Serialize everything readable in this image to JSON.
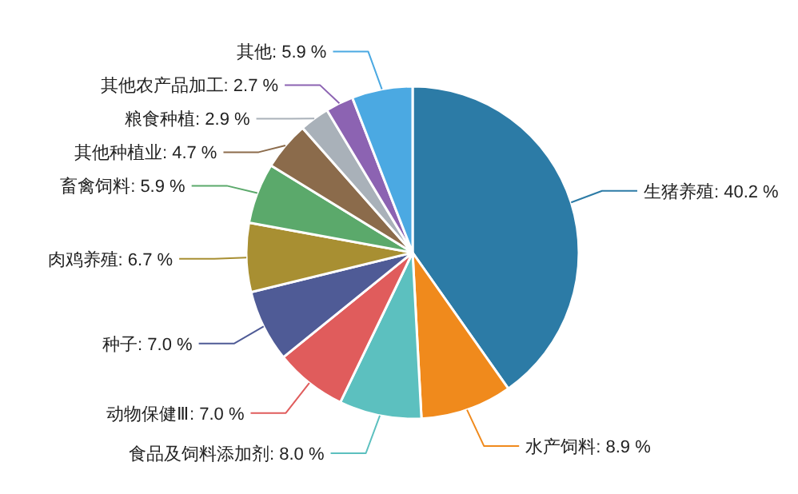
{
  "chart_data": {
    "type": "pie",
    "categories": [
      "生猪养殖",
      "水产饲料",
      "食品及饲料添加剂",
      "动物保健Ⅲ",
      "种子",
      "肉鸡养殖",
      "畜禽饲料",
      "其他种植业",
      "粮食种植",
      "其他农产品加工",
      "其他"
    ],
    "values": [
      40.2,
      8.9,
      8.0,
      7.0,
      7.0,
      6.7,
      5.9,
      4.7,
      2.9,
      2.7,
      5.9
    ],
    "value_labels": [
      "40.2 %",
      "8.9 %",
      "8.0 %",
      "7.0 %",
      "7.0 %",
      "6.7 %",
      "5.9 %",
      "4.7 %",
      "2.9 %",
      "2.7 %",
      "5.9 %"
    ],
    "colors": [
      "#2c7ba6",
      "#f08a1c",
      "#5cc0bf",
      "#e05c5c",
      "#4f5b96",
      "#a88f32",
      "#5ba96b",
      "#8b6b4b",
      "#a9b1b9",
      "#8c63b2",
      "#4ba9e2"
    ]
  }
}
